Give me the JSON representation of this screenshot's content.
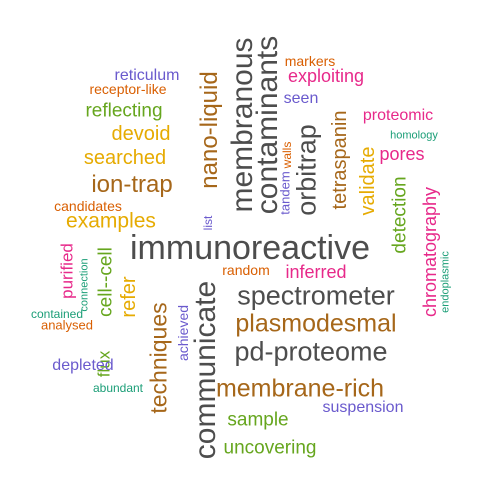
{
  "colors": {
    "gray": "#4d4d4d",
    "brown": "#a6671a",
    "orange": "#d95f02",
    "purple": "#6a5acd",
    "magenta": "#e7298a",
    "green": "#66a61e",
    "gold": "#e6ab02",
    "teal": "#1b9e77"
  },
  "words": [
    {
      "id": "immunoreactive",
      "text": "immunoreactive",
      "color": "gray"
    },
    {
      "id": "communicate",
      "text": "communicate",
      "color": "gray"
    },
    {
      "id": "contaminants",
      "text": "contaminants",
      "color": "gray"
    },
    {
      "id": "membranous",
      "text": "membranous",
      "color": "gray"
    },
    {
      "id": "spectrometer",
      "text": "spectrometer",
      "color": "gray"
    },
    {
      "id": "pd-proteome",
      "text": "pd-proteome",
      "color": "gray"
    },
    {
      "id": "orbitrap",
      "text": "orbitrap",
      "color": "gray"
    },
    {
      "id": "plasmodesmal",
      "text": "plasmodesmal",
      "color": "brown"
    },
    {
      "id": "membrane-rich",
      "text": "membrane-rich",
      "color": "brown"
    },
    {
      "id": "nano-liquid",
      "text": "nano-liquid",
      "color": "brown"
    },
    {
      "id": "ion-trap",
      "text": "ion-trap",
      "color": "brown"
    },
    {
      "id": "techniques",
      "text": "techniques",
      "color": "brown"
    },
    {
      "id": "tetraspanin",
      "text": "tetraspanin",
      "color": "brown"
    },
    {
      "id": "examples",
      "text": "examples",
      "color": "gold"
    },
    {
      "id": "searched",
      "text": "searched",
      "color": "gold"
    },
    {
      "id": "devoid",
      "text": "devoid",
      "color": "gold"
    },
    {
      "id": "validate",
      "text": "validate",
      "color": "gold"
    },
    {
      "id": "refer",
      "text": "refer",
      "color": "gold"
    },
    {
      "id": "reflecting",
      "text": "reflecting",
      "color": "green"
    },
    {
      "id": "detection",
      "text": "detection",
      "color": "green"
    },
    {
      "id": "sample",
      "text": "sample",
      "color": "green"
    },
    {
      "id": "uncovering",
      "text": "uncovering",
      "color": "green"
    },
    {
      "id": "cell-cell",
      "text": "cell--cell",
      "color": "green"
    },
    {
      "id": "flux",
      "text": "flux",
      "color": "green"
    },
    {
      "id": "chromatography",
      "text": "chromatography",
      "color": "magenta"
    },
    {
      "id": "exploiting",
      "text": "exploiting",
      "color": "magenta"
    },
    {
      "id": "proteomic",
      "text": "proteomic",
      "color": "magenta"
    },
    {
      "id": "pores",
      "text": "pores",
      "color": "magenta"
    },
    {
      "id": "inferred",
      "text": "inferred",
      "color": "magenta"
    },
    {
      "id": "purified",
      "text": "purified",
      "color": "magenta"
    },
    {
      "id": "reticulum",
      "text": "reticulum",
      "color": "purple"
    },
    {
      "id": "seen",
      "text": "seen",
      "color": "purple"
    },
    {
      "id": "depleted",
      "text": "depleted",
      "color": "purple"
    },
    {
      "id": "suspension",
      "text": "suspension",
      "color": "purple"
    },
    {
      "id": "achieved",
      "text": "achieved",
      "color": "purple"
    },
    {
      "id": "tandem",
      "text": "tandem",
      "color": "purple"
    },
    {
      "id": "list",
      "text": "list",
      "color": "purple"
    },
    {
      "id": "markers",
      "text": "markers",
      "color": "orange"
    },
    {
      "id": "receptor-like",
      "text": "receptor-like",
      "color": "orange"
    },
    {
      "id": "candidates",
      "text": "candidates",
      "color": "orange"
    },
    {
      "id": "random",
      "text": "random",
      "color": "orange"
    },
    {
      "id": "analysed",
      "text": "analysed",
      "color": "orange"
    },
    {
      "id": "walls",
      "text": "walls",
      "color": "orange"
    },
    {
      "id": "homology",
      "text": "homology",
      "color": "teal"
    },
    {
      "id": "endoplasmic",
      "text": "endoplasmic",
      "color": "teal"
    },
    {
      "id": "connection",
      "text": "connection",
      "color": "teal"
    },
    {
      "id": "contained",
      "text": "contained",
      "color": "teal"
    },
    {
      "id": "abundant",
      "text": "abundant",
      "color": "teal"
    }
  ]
}
